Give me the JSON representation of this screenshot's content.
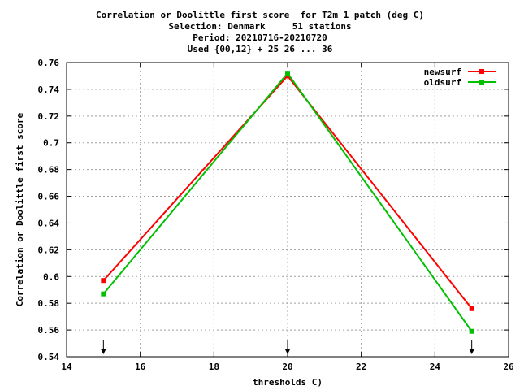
{
  "chart_data": {
    "type": "line",
    "title_lines": [
      "Correlation or Doolittle first score  for T2m 1 patch (deg C)",
      "Selection: Denmark     51 stations",
      "Period: 20210716-20210720",
      "Used {00,12} + 25 26 ... 36"
    ],
    "xlabel": "thresholds C)",
    "ylabel": "Correlation or Doolittle first score",
    "xlim": [
      14,
      26
    ],
    "ylim": [
      0.54,
      0.76
    ],
    "xticks": [
      14,
      16,
      18,
      20,
      22,
      24,
      26
    ],
    "yticks": [
      0.54,
      0.56,
      0.58,
      0.6,
      0.62,
      0.64,
      0.66,
      0.68,
      0.7,
      0.72,
      0.74,
      0.76
    ],
    "ytick_labels": [
      "0.54",
      "0.56",
      "0.58",
      "0.6",
      "0.62",
      "0.64",
      "0.66",
      "0.68",
      "0.7",
      "0.72",
      "0.74",
      "0.76"
    ],
    "grid": true,
    "legend_position": "top-right",
    "series": [
      {
        "name": "newsurf",
        "color": "#ff0000",
        "x": [
          15,
          20,
          25
        ],
        "y": [
          0.597,
          0.75,
          0.576
        ]
      },
      {
        "name": "oldsurf",
        "color": "#00c000",
        "x": [
          15,
          20,
          25
        ],
        "y": [
          0.587,
          0.752,
          0.559
        ]
      }
    ],
    "markers_x": [
      15,
      20,
      25
    ]
  }
}
